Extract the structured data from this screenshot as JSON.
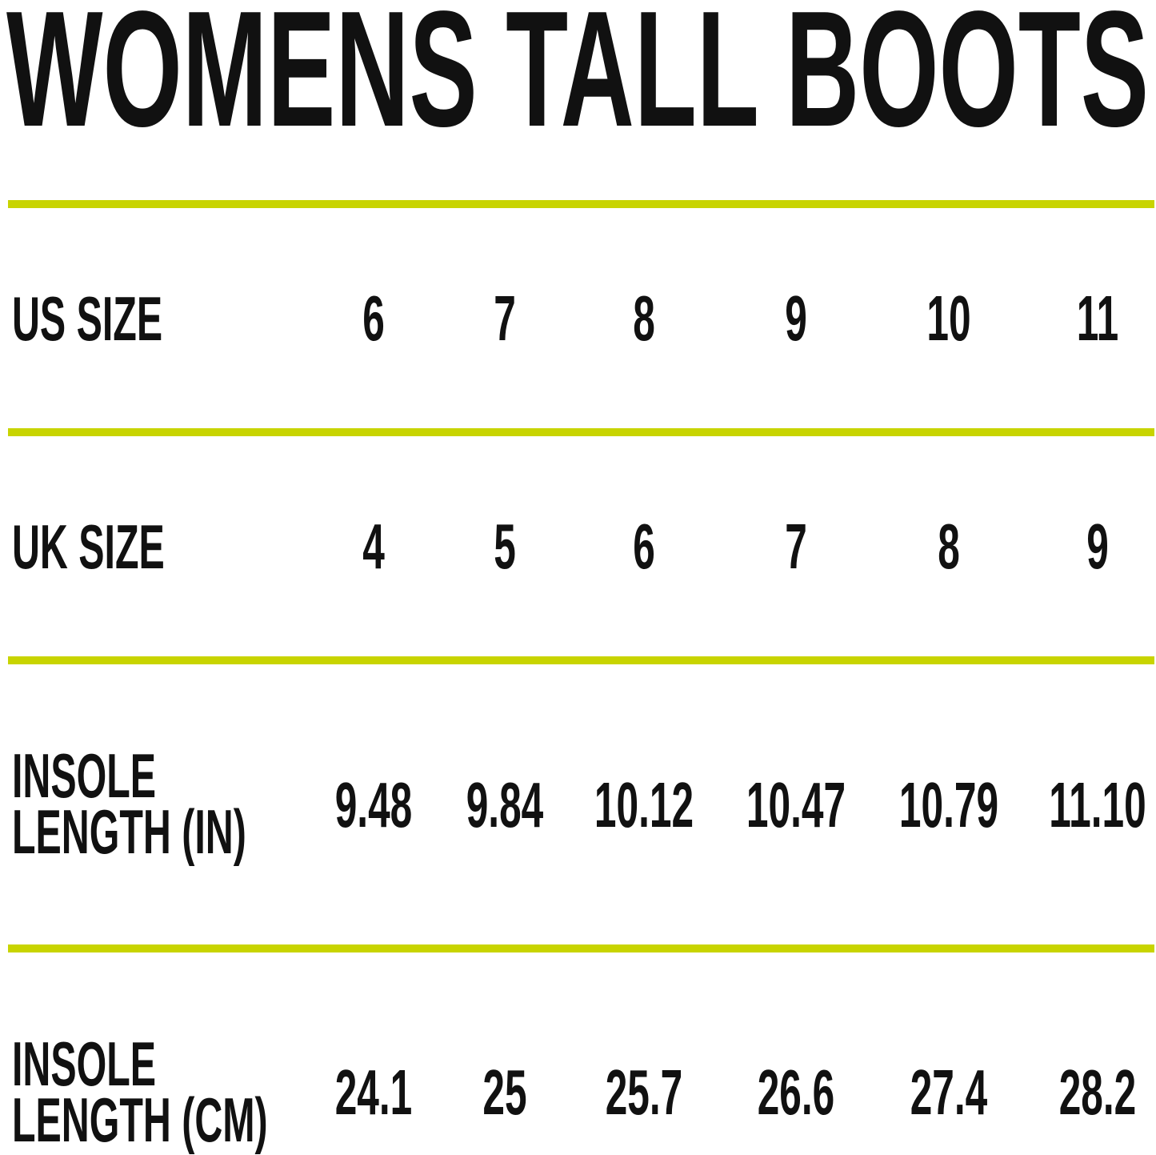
{
  "title": "WOMENS TALL BOOTS",
  "accent_color": "#c8d400",
  "table": {
    "rows": [
      {
        "label_lines": [
          "US SIZE"
        ],
        "values": [
          "6",
          "7",
          "8",
          "9",
          "10",
          "11"
        ]
      },
      {
        "label_lines": [
          "UK SIZE"
        ],
        "values": [
          "4",
          "5",
          "6",
          "7",
          "8",
          "9"
        ]
      },
      {
        "label_lines": [
          "INSOLE",
          "LENGTH (IN)"
        ],
        "values": [
          "9.48",
          "9.84",
          "10.12",
          "10.47",
          "10.79",
          "11.10"
        ]
      },
      {
        "label_lines": [
          "INSOLE",
          "LENGTH (CM)"
        ],
        "values": [
          "24.1",
          "25",
          "25.7",
          "26.6",
          "27.4",
          "28.2"
        ]
      }
    ]
  }
}
